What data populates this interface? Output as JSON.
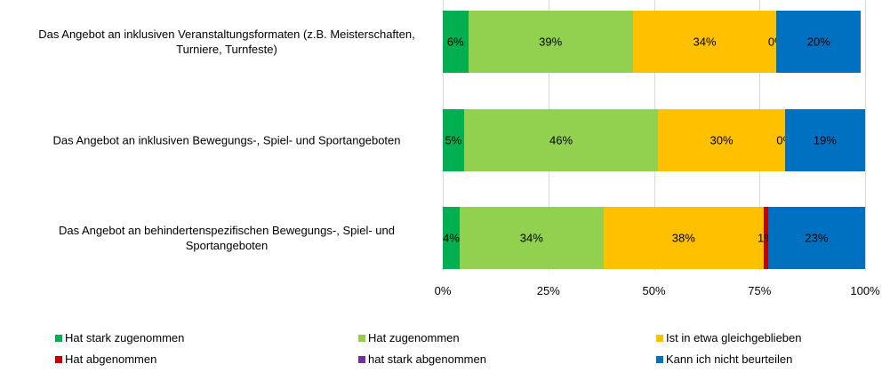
{
  "chart_data": {
    "type": "stacked-bar-horizontal",
    "categories": [
      "Das Angebot an inklusiven Veranstaltungsformaten (z.B. Meisterschaften, Turniere, Turnfeste)",
      "Das Angebot an inklusiven Bewegungs-, Spiel- und Sportangeboten",
      "Das Angebot an behindertenspezifischen Bewegungs-, Spiel- und Sportangeboten"
    ],
    "series": [
      {
        "name": "Hat stark zugenommen",
        "color": "#00b050",
        "values": [
          6,
          5,
          4
        ],
        "value_labels": [
          "6%",
          "5%",
          "4%"
        ]
      },
      {
        "name": "Hat zugenommen",
        "color": "#92d050",
        "values": [
          39,
          46,
          34
        ],
        "value_labels": [
          "39%",
          "46%",
          "34%"
        ]
      },
      {
        "name": "Ist in etwa gleichgeblieben",
        "color": "#ffc000",
        "values": [
          34,
          30,
          38
        ],
        "value_labels": [
          "34%",
          "30%",
          "38%"
        ]
      },
      {
        "name": "Hat abgenommen",
        "color": "#c00000",
        "values": [
          0,
          0,
          1
        ],
        "value_labels": [
          "0%",
          "0%",
          "1%"
        ]
      },
      {
        "name": "hat stark abgenommen",
        "color": "#7030a0",
        "values": [
          0,
          0,
          0
        ]
      },
      {
        "name": "Kann ich nicht beurteilen",
        "color": "#0070c0",
        "values": [
          20,
          19,
          23
        ],
        "value_labels": [
          "20%",
          "19%",
          "23%"
        ]
      }
    ],
    "xlim": [
      0,
      100
    ],
    "xticks": [
      {
        "value": 0,
        "label": "0%"
      },
      {
        "value": 25,
        "label": "25%"
      },
      {
        "value": 50,
        "label": "50%"
      },
      {
        "value": 75,
        "label": "75%"
      },
      {
        "value": 100,
        "label": "100%"
      }
    ],
    "grid": true,
    "legend": "bottom"
  }
}
